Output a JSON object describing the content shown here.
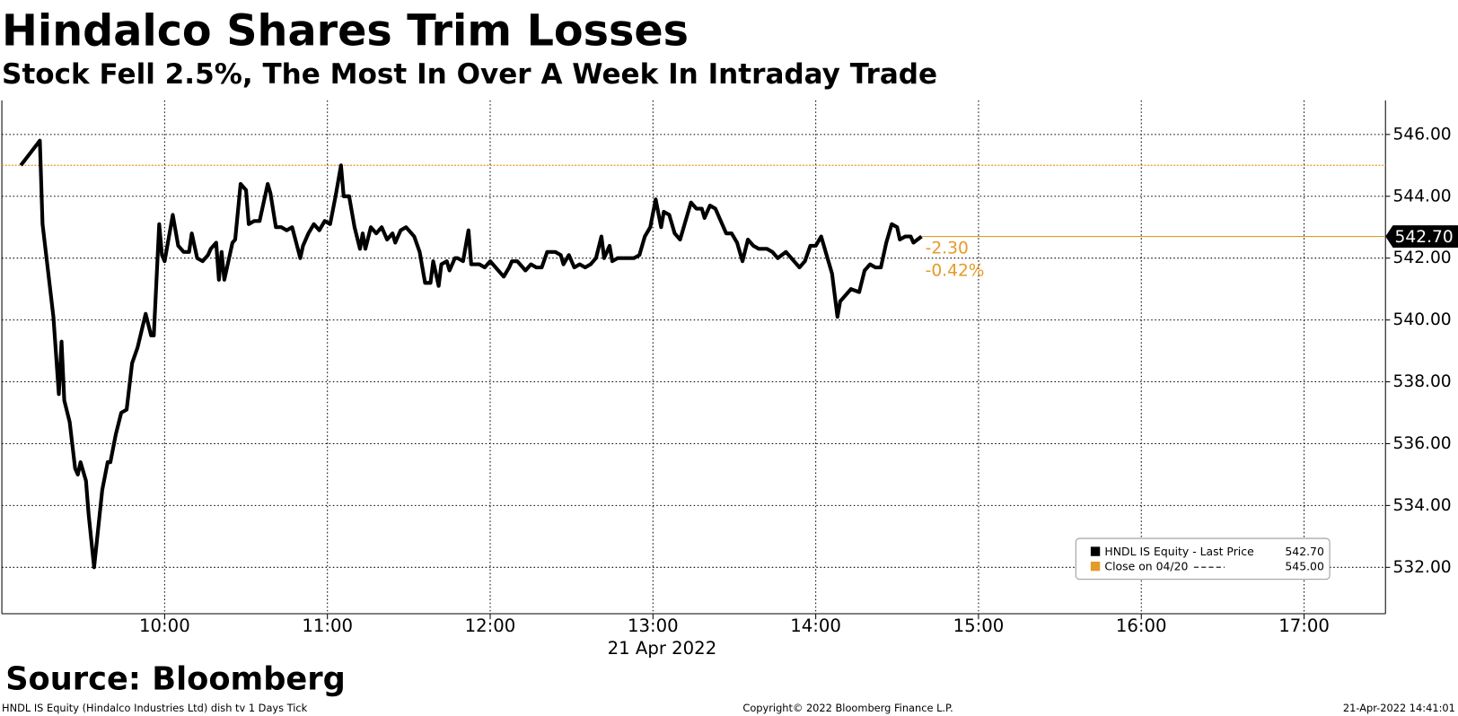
{
  "chart_data": {
    "type": "line",
    "title": "Hindalco Shares Trim Losses",
    "subtitle": "Stock Fell 2.5%, The Most In Over A Week In Intraday Trade",
    "x_label": "21 Apr 2022",
    "x": [
      "09:07",
      "09:14",
      "09:15",
      "09:19",
      "09:21",
      "09:22",
      "09:23",
      "09:25",
      "09:27",
      "09:28",
      "09:29",
      "09:31",
      "09:32",
      "09:34",
      "09:37",
      "09:39",
      "09:40",
      "09:42",
      "09:44",
      "09:46",
      "09:48",
      "09:50",
      "09:53",
      "09:55",
      "09:56",
      "09:58",
      "09:59",
      "10:00",
      "10:03",
      "10:05",
      "10:07",
      "10:09",
      "10:10",
      "10:12",
      "10:14",
      "10:16",
      "10:17",
      "10:19",
      "10:20",
      "10:21",
      "10:22",
      "10:23",
      "10:25",
      "10:26",
      "10:28",
      "10:30",
      "10:31",
      "10:33",
      "10:35",
      "10:36",
      "10:38",
      "10:39",
      "10:41",
      "10:43",
      "10:45",
      "10:47",
      "10:50",
      "10:51",
      "10:53",
      "10:55",
      "10:57",
      "10:59",
      "11:01",
      "11:03",
      "11:05",
      "11:06",
      "11:08",
      "11:10",
      "11:12",
      "11:13",
      "11:14",
      "11:16",
      "11:18",
      "11:20",
      "11:22",
      "11:24",
      "11:25",
      "11:27",
      "11:29",
      "11:32",
      "11:34",
      "11:36",
      "11:38",
      "11:39",
      "11:41",
      "11:42",
      "11:44",
      "11:45",
      "11:47",
      "11:48",
      "11:50",
      "11:52",
      "11:53",
      "11:56",
      "11:58",
      "12:00",
      "12:03",
      "12:05",
      "12:07",
      "12:08",
      "12:10",
      "12:13",
      "12:15",
      "12:17",
      "12:19",
      "12:21",
      "12:24",
      "12:26",
      "12:27",
      "12:29",
      "12:31",
      "12:33",
      "12:35",
      "12:37",
      "12:39",
      "12:41",
      "12:42",
      "12:44",
      "12:45",
      "12:47",
      "12:50",
      "12:53",
      "12:55",
      "12:57",
      "12:59",
      "13:01",
      "13:03",
      "13:04",
      "13:06",
      "13:08",
      "13:10",
      "13:12",
      "13:14",
      "13:16",
      "13:18",
      "13:19",
      "13:21",
      "13:23",
      "13:25",
      "13:27",
      "13:29",
      "13:31",
      "13:33",
      "13:35",
      "13:37",
      "13:39",
      "13:42",
      "13:44",
      "13:46",
      "13:49",
      "13:52",
      "13:54",
      "13:56",
      "13:58",
      "14:00",
      "14:02",
      "14:04",
      "14:06",
      "14:08",
      "14:09",
      "14:11",
      "14:13",
      "14:16",
      "14:18",
      "14:20",
      "14:22",
      "14:24",
      "14:26",
      "14:28",
      "14:30",
      "14:31",
      "14:33",
      "14:35",
      "14:36",
      "14:39"
    ],
    "series": [
      {
        "name": "HNDL IS Equity - Last Price",
        "color": "#000000",
        "values": [
          545.0,
          545.8,
          543.1,
          540.1,
          537.6,
          539.3,
          537.4,
          536.7,
          535.2,
          535.0,
          535.4,
          534.8,
          533.7,
          532.0,
          534.5,
          535.4,
          535.4,
          536.3,
          537.0,
          537.1,
          538.6,
          539.1,
          540.2,
          539.5,
          539.5,
          543.1,
          542.1,
          541.9,
          543.4,
          542.4,
          542.2,
          542.2,
          542.8,
          542.0,
          541.9,
          542.1,
          542.3,
          542.5,
          541.3,
          542.2,
          541.3,
          541.7,
          542.5,
          542.6,
          544.4,
          544.2,
          543.1,
          543.2,
          543.2,
          543.6,
          544.4,
          544.1,
          543.0,
          543.0,
          542.9,
          543.0,
          542.0,
          542.4,
          542.8,
          543.1,
          542.9,
          543.2,
          543.1,
          544.0,
          545.0,
          544.0,
          544.0,
          543.0,
          542.3,
          542.8,
          542.3,
          543.0,
          542.8,
          543.0,
          542.6,
          542.8,
          542.5,
          542.9,
          543.0,
          542.7,
          542.2,
          541.2,
          541.2,
          541.9,
          541.1,
          541.8,
          541.9,
          541.6,
          542.0,
          542.0,
          541.9,
          542.9,
          541.8,
          541.8,
          541.7,
          541.9,
          541.6,
          541.4,
          541.7,
          541.9,
          541.9,
          541.6,
          541.8,
          541.7,
          541.7,
          542.2,
          542.2,
          542.1,
          541.8,
          542.1,
          541.7,
          541.8,
          541.7,
          541.8,
          542.0,
          542.7,
          542.0,
          542.4,
          541.9,
          542.0,
          542.0,
          542.0,
          542.1,
          542.7,
          543.0,
          543.9,
          543.0,
          543.5,
          543.4,
          542.8,
          542.6,
          543.2,
          543.8,
          543.6,
          543.6,
          543.3,
          543.7,
          543.6,
          543.2,
          542.8,
          542.8,
          542.5,
          541.9,
          542.6,
          542.4,
          542.3,
          542.3,
          542.2,
          542.0,
          542.2,
          541.9,
          541.7,
          541.9,
          542.4,
          542.4,
          542.7,
          542.1,
          541.5,
          540.1,
          540.6,
          540.8,
          541.0,
          540.9,
          541.6,
          541.8,
          541.7,
          541.7,
          542.5,
          543.1,
          543.0,
          542.6,
          542.7,
          542.7,
          542.5,
          542.7
        ]
      }
    ],
    "xlim": [
      "09:00",
      "17:30"
    ],
    "xticks": [
      "10:00",
      "11:00",
      "12:00",
      "13:00",
      "14:00",
      "15:00",
      "16:00",
      "17:00"
    ],
    "ylim": [
      530.5,
      547.1
    ],
    "yticks": [
      {
        "value": 532,
        "label": "532.00"
      },
      {
        "value": 534,
        "label": "534.00"
      },
      {
        "value": 536,
        "label": "536.00"
      },
      {
        "value": 538,
        "label": "538.00"
      },
      {
        "value": 540,
        "label": "540.00"
      },
      {
        "value": 542,
        "label": "542.00"
      },
      {
        "value": 544,
        "label": "544.00"
      },
      {
        "value": 546,
        "label": "546.00"
      }
    ],
    "grid": true,
    "reference_line": {
      "name": "Close on 04/20",
      "value": 545,
      "label": "545.00",
      "color": "#e69a28"
    },
    "last_price": {
      "value": 542.7,
      "label": "542.70"
    },
    "change": {
      "value": -2.3,
      "label": "-2.30"
    },
    "change_pct": {
      "value": -0.42,
      "label": "-0.42%"
    },
    "legend": "bottom-right",
    "source": "Source: Bloomberg",
    "footer": {
      "left": "HNDL IS Equity (Hindalco Industries Ltd) dish tv 1 Days  Tick",
      "center": "Copyright© 2022 Bloomberg Finance L.P.",
      "right": "21-Apr-2022 14:41:01"
    }
  }
}
